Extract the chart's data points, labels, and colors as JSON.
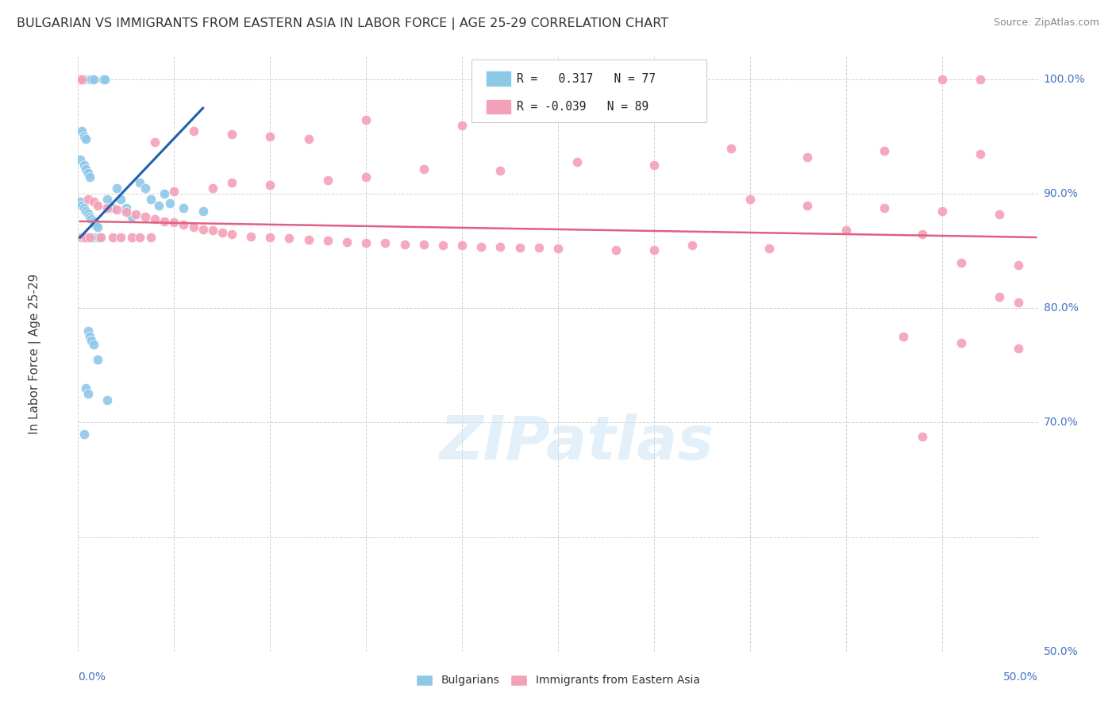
{
  "title": "BULGARIAN VS IMMIGRANTS FROM EASTERN ASIA IN LABOR FORCE | AGE 25-29 CORRELATION CHART",
  "source": "Source: ZipAtlas.com",
  "ylabel": "In Labor Force | Age 25-29",
  "legend_blue_r": "0.317",
  "legend_blue_n": "77",
  "legend_pink_r": "-0.039",
  "legend_pink_n": "89",
  "legend_label_blue": "Bulgarians",
  "legend_label_pink": "Immigrants from Eastern Asia",
  "blue_color": "#8ec8e8",
  "pink_color": "#f4a0b8",
  "blue_line_color": "#2060b0",
  "pink_line_color": "#e06080",
  "watermark": "ZIPatlas",
  "xmin": 0.0,
  "xmax": 0.5,
  "ymin": 0.5,
  "ymax": 1.02,
  "yticks": [
    0.5,
    0.6,
    0.7,
    0.8,
    0.9,
    1.0
  ],
  "ytick_labels": [
    "50.0%",
    "",
    "70.0%",
    "80.0%",
    "90.0%",
    "100.0%"
  ],
  "xtick_labels_bottom": [
    "0.0%",
    "50.0%"
  ],
  "blue_dots": [
    [
      0.001,
      1.0
    ],
    [
      0.002,
      1.0
    ],
    [
      0.002,
      1.0
    ],
    [
      0.003,
      1.0
    ],
    [
      0.003,
      1.0
    ],
    [
      0.004,
      1.0
    ],
    [
      0.004,
      1.0
    ],
    [
      0.005,
      1.0
    ],
    [
      0.005,
      1.0
    ],
    [
      0.006,
      1.0
    ],
    [
      0.006,
      1.0
    ],
    [
      0.007,
      1.0
    ],
    [
      0.007,
      1.0
    ],
    [
      0.008,
      1.0
    ],
    [
      0.013,
      1.0
    ],
    [
      0.014,
      1.0
    ],
    [
      0.002,
      0.955
    ],
    [
      0.003,
      0.95
    ],
    [
      0.004,
      0.948
    ],
    [
      0.001,
      0.93
    ],
    [
      0.003,
      0.925
    ],
    [
      0.004,
      0.922
    ],
    [
      0.005,
      0.918
    ],
    [
      0.006,
      0.915
    ],
    [
      0.001,
      0.893
    ],
    [
      0.002,
      0.89
    ],
    [
      0.003,
      0.888
    ],
    [
      0.004,
      0.885
    ],
    [
      0.005,
      0.883
    ],
    [
      0.006,
      0.88
    ],
    [
      0.007,
      0.878
    ],
    [
      0.008,
      0.876
    ],
    [
      0.009,
      0.873
    ],
    [
      0.01,
      0.871
    ],
    [
      0.001,
      0.862
    ],
    [
      0.002,
      0.862
    ],
    [
      0.003,
      0.862
    ],
    [
      0.004,
      0.862
    ],
    [
      0.005,
      0.862
    ],
    [
      0.006,
      0.862
    ],
    [
      0.007,
      0.862
    ],
    [
      0.008,
      0.862
    ],
    [
      0.009,
      0.862
    ],
    [
      0.01,
      0.862
    ],
    [
      0.011,
      0.862
    ],
    [
      0.015,
      0.895
    ],
    [
      0.018,
      0.888
    ],
    [
      0.02,
      0.905
    ],
    [
      0.022,
      0.895
    ],
    [
      0.025,
      0.888
    ],
    [
      0.028,
      0.88
    ],
    [
      0.032,
      0.91
    ],
    [
      0.035,
      0.905
    ],
    [
      0.038,
      0.895
    ],
    [
      0.042,
      0.89
    ],
    [
      0.045,
      0.9
    ],
    [
      0.048,
      0.892
    ],
    [
      0.055,
      0.888
    ],
    [
      0.065,
      0.885
    ],
    [
      0.005,
      0.78
    ],
    [
      0.006,
      0.775
    ],
    [
      0.007,
      0.772
    ],
    [
      0.008,
      0.768
    ],
    [
      0.01,
      0.755
    ],
    [
      0.004,
      0.73
    ],
    [
      0.005,
      0.725
    ],
    [
      0.015,
      0.72
    ],
    [
      0.003,
      0.69
    ]
  ],
  "pink_dots": [
    [
      0.001,
      1.0
    ],
    [
      0.002,
      1.0
    ],
    [
      0.45,
      1.0
    ],
    [
      0.47,
      1.0
    ],
    [
      0.15,
      0.965
    ],
    [
      0.2,
      0.96
    ],
    [
      0.06,
      0.955
    ],
    [
      0.08,
      0.952
    ],
    [
      0.1,
      0.95
    ],
    [
      0.12,
      0.948
    ],
    [
      0.04,
      0.945
    ],
    [
      0.34,
      0.94
    ],
    [
      0.42,
      0.938
    ],
    [
      0.47,
      0.935
    ],
    [
      0.38,
      0.932
    ],
    [
      0.26,
      0.928
    ],
    [
      0.3,
      0.925
    ],
    [
      0.18,
      0.922
    ],
    [
      0.22,
      0.92
    ],
    [
      0.15,
      0.915
    ],
    [
      0.13,
      0.912
    ],
    [
      0.08,
      0.91
    ],
    [
      0.1,
      0.908
    ],
    [
      0.07,
      0.905
    ],
    [
      0.05,
      0.902
    ],
    [
      0.005,
      0.895
    ],
    [
      0.008,
      0.893
    ],
    [
      0.01,
      0.89
    ],
    [
      0.015,
      0.888
    ],
    [
      0.02,
      0.886
    ],
    [
      0.025,
      0.884
    ],
    [
      0.03,
      0.882
    ],
    [
      0.035,
      0.88
    ],
    [
      0.04,
      0.878
    ],
    [
      0.045,
      0.876
    ],
    [
      0.05,
      0.875
    ],
    [
      0.055,
      0.873
    ],
    [
      0.06,
      0.871
    ],
    [
      0.065,
      0.869
    ],
    [
      0.07,
      0.868
    ],
    [
      0.075,
      0.866
    ],
    [
      0.08,
      0.865
    ],
    [
      0.09,
      0.863
    ],
    [
      0.1,
      0.862
    ],
    [
      0.11,
      0.861
    ],
    [
      0.12,
      0.86
    ],
    [
      0.13,
      0.859
    ],
    [
      0.14,
      0.858
    ],
    [
      0.15,
      0.857
    ],
    [
      0.16,
      0.857
    ],
    [
      0.17,
      0.856
    ],
    [
      0.18,
      0.856
    ],
    [
      0.19,
      0.855
    ],
    [
      0.2,
      0.855
    ],
    [
      0.21,
      0.854
    ],
    [
      0.22,
      0.854
    ],
    [
      0.23,
      0.853
    ],
    [
      0.24,
      0.853
    ],
    [
      0.25,
      0.852
    ],
    [
      0.28,
      0.851
    ],
    [
      0.3,
      0.851
    ],
    [
      0.002,
      0.862
    ],
    [
      0.003,
      0.862
    ],
    [
      0.004,
      0.862
    ],
    [
      0.006,
      0.862
    ],
    [
      0.012,
      0.862
    ],
    [
      0.018,
      0.862
    ],
    [
      0.022,
      0.862
    ],
    [
      0.028,
      0.862
    ],
    [
      0.032,
      0.862
    ],
    [
      0.038,
      0.862
    ],
    [
      0.35,
      0.895
    ],
    [
      0.38,
      0.89
    ],
    [
      0.42,
      0.888
    ],
    [
      0.45,
      0.885
    ],
    [
      0.48,
      0.882
    ],
    [
      0.4,
      0.868
    ],
    [
      0.44,
      0.865
    ],
    [
      0.46,
      0.84
    ],
    [
      0.49,
      0.838
    ],
    [
      0.32,
      0.855
    ],
    [
      0.36,
      0.852
    ],
    [
      0.48,
      0.81
    ],
    [
      0.49,
      0.805
    ],
    [
      0.43,
      0.775
    ],
    [
      0.46,
      0.77
    ],
    [
      0.49,
      0.765
    ],
    [
      0.44,
      0.688
    ]
  ],
  "blue_trend_x": [
    0.001,
    0.065
  ],
  "blue_trend_y": [
    0.862,
    0.975
  ],
  "pink_trend_x": [
    0.001,
    0.499
  ],
  "pink_trend_y": [
    0.876,
    0.862
  ]
}
